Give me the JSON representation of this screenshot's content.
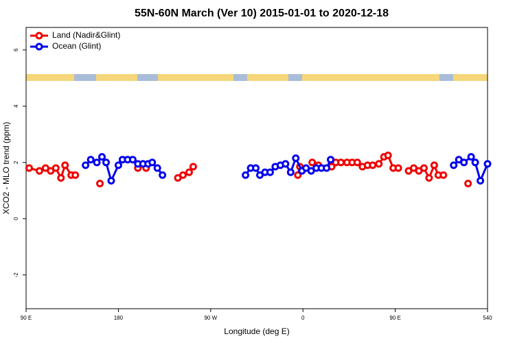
{
  "chart_data": {
    "type": "line",
    "title": "55N-60N March (Ver 10)   2015-01-01 to 2020-12-18",
    "xlabel": "Longitude (deg E)",
    "ylabel": "XCO2 - MLO trend (ppm)",
    "xlim": [
      90,
      540
    ],
    "ylim": [
      -3.2,
      6.8
    ],
    "xticks": [
      {
        "value": 90,
        "label": "90 E"
      },
      180,
      {
        "value": 270,
        "label": "90 W"
      },
      {
        "value": 360,
        "label": "0"
      },
      {
        "value": 450,
        "label": "90 E"
      },
      540
    ],
    "yticks": [
      -2,
      0,
      2,
      4,
      6
    ],
    "legend": "top-left",
    "series": [
      {
        "name": "Land (Nadir&Glint)",
        "color": "#ee0000",
        "x": [
          93,
          103,
          109,
          114,
          119,
          124,
          128,
          134,
          138,
          null,
          162,
          null,
          199,
          null,
          207,
          null,
          238,
          243,
          249,
          253,
          null,
          355,
          357,
          null,
          369,
          375,
          388,
          392,
          397,
          403,
          408,
          413,
          418,
          423,
          428,
          434,
          439,
          443,
          448,
          453,
          null,
          463,
          468,
          473,
          478,
          483,
          488,
          492,
          497,
          null,
          521
        ],
        "values": [
          1.8,
          1.7,
          1.8,
          1.7,
          1.8,
          1.45,
          1.9,
          1.55,
          1.55,
          null,
          1.25,
          null,
          1.8,
          null,
          1.8,
          null,
          1.45,
          1.55,
          1.65,
          1.85,
          null,
          1.55,
          1.85,
          null,
          2.0,
          1.9,
          1.85,
          2.0,
          2.0,
          2.0,
          2.0,
          2.0,
          1.85,
          1.9,
          1.9,
          1.95,
          2.2,
          2.25,
          1.8,
          1.8,
          null,
          1.7,
          1.8,
          1.7,
          1.8,
          1.45,
          1.9,
          1.55,
          1.55,
          null,
          1.25
        ]
      },
      {
        "name": "Ocean (Glint)",
        "color": "#0000ee",
        "x": [
          148,
          153,
          159,
          164,
          168,
          173,
          180,
          184,
          189,
          194,
          199,
          204,
          209,
          213,
          218,
          223,
          null,
          304,
          309,
          314,
          318,
          323,
          328,
          333,
          338,
          343,
          348,
          353,
          359,
          363,
          368,
          373,
          378,
          383,
          387,
          null,
          507,
          512,
          517,
          524,
          528,
          533,
          540
        ],
        "values": [
          1.9,
          2.1,
          2.0,
          2.2,
          2.0,
          1.35,
          1.9,
          2.1,
          2.1,
          2.1,
          1.95,
          1.95,
          1.95,
          2.0,
          1.8,
          1.55,
          null,
          1.55,
          1.8,
          1.8,
          1.55,
          1.65,
          1.65,
          1.85,
          1.9,
          1.95,
          1.65,
          2.15,
          1.7,
          1.8,
          1.7,
          1.8,
          1.8,
          1.8,
          2.1,
          null,
          1.9,
          2.1,
          2.0,
          2.2,
          2.0,
          1.35,
          1.95
        ]
      }
    ]
  }
}
